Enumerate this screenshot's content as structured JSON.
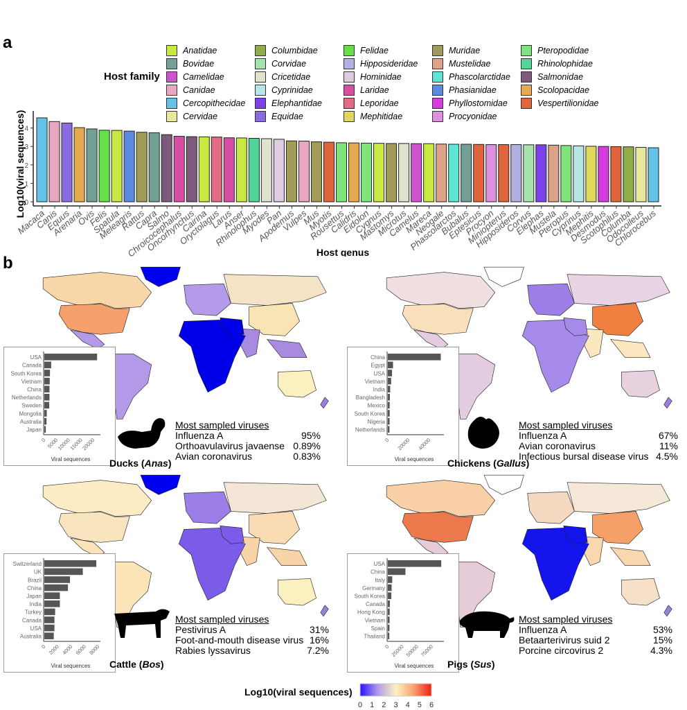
{
  "panel_a_label": "a",
  "panel_b_label": "b",
  "legend": {
    "title": "Host family",
    "items": [
      {
        "name": "Anatidae",
        "color": "#c9e843"
      },
      {
        "name": "Bovidae",
        "color": "#73a094"
      },
      {
        "name": "Camelidae",
        "color": "#cc55cc"
      },
      {
        "name": "Canidae",
        "color": "#e8a7c1"
      },
      {
        "name": "Cercopithecidae",
        "color": "#64c3e8"
      },
      {
        "name": "Cervidae",
        "color": "#e6e89a"
      },
      {
        "name": "Columbidae",
        "color": "#8fae4a"
      },
      {
        "name": "Corvidae",
        "color": "#a7e3ac"
      },
      {
        "name": "Cricetidae",
        "color": "#dfe2cc"
      },
      {
        "name": "Cyprinidae",
        "color": "#b7e6e6"
      },
      {
        "name": "Elephantidae",
        "color": "#7a42e8"
      },
      {
        "name": "Equidae",
        "color": "#8a6ce0"
      },
      {
        "name": "Felidae",
        "color": "#66e048"
      },
      {
        "name": "Hipposideridae",
        "color": "#b0b0e2"
      },
      {
        "name": "Hominidae",
        "color": "#dfcce0"
      },
      {
        "name": "Laridae",
        "color": "#d84ea4"
      },
      {
        "name": "Leporidae",
        "color": "#e26a84"
      },
      {
        "name": "Mephitidae",
        "color": "#e0d85a"
      },
      {
        "name": "Muridae",
        "color": "#a19c57"
      },
      {
        "name": "Mustelidae",
        "color": "#dba488"
      },
      {
        "name": "Phascolarctidae",
        "color": "#5ee6d2"
      },
      {
        "name": "Phasianidae",
        "color": "#5c8ae0"
      },
      {
        "name": "Phyllostomidae",
        "color": "#d63ae0"
      },
      {
        "name": "Procyonidae",
        "color": "#dc90de"
      },
      {
        "name": "Pteropodidae",
        "color": "#7fe47a"
      },
      {
        "name": "Rhinolophidae",
        "color": "#52d49a"
      },
      {
        "name": "Salmonidae",
        "color": "#7b5a7c"
      },
      {
        "name": "Scolopacidae",
        "color": "#e6aa4e"
      },
      {
        "name": "Vespertilionidae",
        "color": "#e0653c"
      }
    ]
  },
  "chart_data": [
    {
      "type": "bar",
      "title": "",
      "xlabel": "Host genus",
      "ylabel": "Log10(viral sequences)",
      "ylim": [
        0,
        4.7
      ],
      "yticks": [
        0,
        1,
        2,
        3,
        4
      ],
      "grid": false,
      "legend_position": "top",
      "categories": [
        "Macaca",
        "Canis",
        "Equus",
        "Arenaria",
        "Ovis",
        "Felis",
        "Spatula",
        "Meleagris",
        "Rattus",
        "Capra",
        "Salmo",
        "Chroicocephalus",
        "Oncorhynchus",
        "Cairina",
        "Oryctolagus",
        "Larus",
        "Anser",
        "Rhinolophus",
        "Myodes",
        "Pan",
        "Apodemus",
        "Vulpes",
        "Mus",
        "Myotis",
        "Rousettus",
        "Calidris",
        "Eidolon",
        "Cygnus",
        "Mastomys",
        "Microtus",
        "Camelus",
        "Mareca",
        "Neogale",
        "Phascolarctos",
        "Bubalus",
        "Eptesicus",
        "Procyon",
        "Miniopterus",
        "Hipposideros",
        "Corvus",
        "Elephas",
        "Mustela",
        "Pteropus",
        "Cyprinus",
        "Mephitis",
        "Desmodus",
        "Scotophilus",
        "Columba",
        "Odocoileus",
        "Chlorocebus"
      ],
      "values": [
        4.55,
        4.35,
        4.27,
        4.02,
        3.95,
        3.88,
        3.87,
        3.83,
        3.77,
        3.74,
        3.64,
        3.55,
        3.53,
        3.52,
        3.51,
        3.47,
        3.46,
        3.44,
        3.42,
        3.39,
        3.3,
        3.29,
        3.25,
        3.23,
        3.2,
        3.19,
        3.18,
        3.17,
        3.16,
        3.16,
        3.15,
        3.15,
        3.13,
        3.12,
        3.12,
        3.11,
        3.1,
        3.1,
        3.1,
        3.09,
        3.09,
        3.07,
        3.05,
        3.03,
        3.01,
        3.0,
        2.99,
        2.98,
        2.95,
        2.93
      ],
      "families": [
        "Cercopithecidae",
        "Canidae",
        "Equidae",
        "Scolopacidae",
        "Bovidae",
        "Felidae",
        "Anatidae",
        "Phasianidae",
        "Muridae",
        "Bovidae",
        "Salmonidae",
        "Laridae",
        "Salmonidae",
        "Anatidae",
        "Leporidae",
        "Laridae",
        "Anatidae",
        "Rhinolophidae",
        "Cricetidae",
        "Hominidae",
        "Muridae",
        "Canidae",
        "Muridae",
        "Vespertilionidae",
        "Pteropodidae",
        "Scolopacidae",
        "Pteropodidae",
        "Anatidae",
        "Muridae",
        "Cricetidae",
        "Camelidae",
        "Anatidae",
        "Mustelidae",
        "Phascolarctidae",
        "Bovidae",
        "Vespertilionidae",
        "Procyonidae",
        "Vespertilionidae",
        "Hipposideridae",
        "Corvidae",
        "Elephantidae",
        "Mustelidae",
        "Pteropodidae",
        "Cyprinidae",
        "Mephitidae",
        "Phyllostomidae",
        "Vespertilionidae",
        "Columbidae",
        "Cervidae",
        "Cercopithecidae"
      ]
    },
    {
      "type": "bar",
      "orientation": "horizontal",
      "title": "Ducks (Anas)",
      "xlabel": "Viral sequences",
      "xlim": [
        0,
        22000
      ],
      "xticks": [
        0,
        5000,
        10000,
        15000,
        20000
      ],
      "categories": [
        "USA",
        "Canada",
        "South Korea",
        "Vietnam",
        "China",
        "Netherlands",
        "Sweden",
        "Mongolia",
        "Australia",
        "Japan"
      ],
      "values": [
        21500,
        2800,
        2300,
        2200,
        2100,
        2100,
        2000,
        1000,
        900,
        600
      ]
    },
    {
      "type": "bar",
      "orientation": "horizontal",
      "title": "Chickens (Gallus)",
      "xlabel": "Viral sequences",
      "xlim": [
        0,
        52000
      ],
      "xticks": [
        0,
        20000,
        40000
      ],
      "categories": [
        "China",
        "Egypt",
        "USA",
        "Vietnam",
        "India",
        "Bangladesh",
        "Mexico",
        "South Korea",
        "Nigeria",
        "Netherlands"
      ],
      "values": [
        51000,
        5000,
        4000,
        3200,
        2300,
        2000,
        1800,
        1800,
        1700,
        1600
      ]
    },
    {
      "type": "bar",
      "orientation": "horizontal",
      "title": "Cattle (Bos)",
      "xlabel": "Viral sequences",
      "xlim": [
        0,
        8000
      ],
      "xticks": [
        0,
        2000,
        4000,
        6000,
        8000
      ],
      "categories": [
        "Switzerland",
        "UK",
        "Brazil",
        "China",
        "Japan",
        "India",
        "Turkey",
        "Canada",
        "USA",
        "Australia"
      ],
      "values": [
        7700,
        5700,
        3800,
        3500,
        2300,
        2300,
        1600,
        1500,
        1500,
        1400
      ]
    },
    {
      "type": "bar",
      "orientation": "horizontal",
      "title": "Pigs (Sus)",
      "xlabel": "Viral sequences",
      "xlim": [
        0,
        92000
      ],
      "xticks": [
        0,
        25000,
        50000,
        75000
      ],
      "categories": [
        "USA",
        "China",
        "Italy",
        "Germany",
        "South Korea",
        "Canada",
        "Hong Kong",
        "Vietnam",
        "Spain",
        "Thailand"
      ],
      "values": [
        91000,
        30000,
        7500,
        6500,
        6000,
        3500,
        3200,
        3000,
        2800,
        2600
      ]
    }
  ],
  "maps": [
    {
      "animal": "Ducks",
      "genus": "Anas",
      "viruses_title": "Most sampled viruses",
      "viruses": [
        {
          "name": "Influenza A",
          "pct": "95%"
        },
        {
          "name": "Orthoavulavirus javaense",
          "pct": "0.89%"
        },
        {
          "name": "Avian coronavirus",
          "pct": "0.83%"
        }
      ],
      "colors": {
        "na": "#f9d7a8",
        "usa": "#f6a06c",
        "greenland": "#0000f0",
        "europe": "#b49ae8",
        "russia": "#f5e3c8",
        "china": "#f9e4b4",
        "africa": "#0000e8",
        "sa": "#b399e8",
        "australia": "#fbf0c0",
        "india": "#a88ae0"
      }
    },
    {
      "animal": "Chickens",
      "genus": "Gallus",
      "viruses_title": "Most sampled viruses",
      "viruses": [
        {
          "name": "Influenza A",
          "pct": "67%"
        },
        {
          "name": "Avian coronavirus",
          "pct": "11%"
        },
        {
          "name": "Infectious bursal disease virus",
          "pct": "4.5%"
        }
      ],
      "colors": {
        "na": "#f0dfe0",
        "usa": "#f9e0bc",
        "greenland": "#ffffff",
        "europe": "#9d7ee6",
        "russia": "#e8d4e4",
        "china": "#f08040",
        "africa": "#a68aea",
        "sa": "#e4cce0",
        "australia": "#e9d2df",
        "india": "#fbe8c0"
      }
    },
    {
      "animal": "Cattle",
      "genus": "Bos",
      "viruses_title": "Most sampled viruses",
      "viruses": [
        {
          "name": "Pestivirus A",
          "pct": "31%"
        },
        {
          "name": "Foot-and-mouth disease virus",
          "pct": "16%"
        },
        {
          "name": "Rabies lyssavirus",
          "pct": "7.2%"
        }
      ],
      "colors": {
        "na": "#fbecc4",
        "usa": "#f9e4c0",
        "greenland": "#0000f0",
        "europe": "#9b7ee6",
        "russia": "#f3e6d6",
        "china": "#f9dcb4",
        "africa": "#7a5ce8",
        "sa": "#fbe4b8",
        "australia": "#fbf0c0",
        "india": "#f9d4a8"
      }
    },
    {
      "animal": "Pigs",
      "genus": "Sus",
      "viruses_title": "Most sampled viruses",
      "viruses": [
        {
          "name": "Influenza A",
          "pct": "53%"
        },
        {
          "name": "Betaarterivirus suid 2",
          "pct": "15%"
        },
        {
          "name": "Porcine circovirus 2",
          "pct": "4.3%"
        }
      ],
      "colors": {
        "na": "#f9d0a8",
        "usa": "#ec7a4c",
        "greenland": "#ffffff",
        "europe": "#f4d8c0",
        "russia": "#f6e8d8",
        "china": "#f5a068",
        "africa": "#1414ec",
        "sa": "#e6ccd8",
        "australia": "#f6e0c8",
        "india": "#f9d8b0"
      }
    }
  ],
  "colorbar": {
    "title": "Log10(viral sequences)",
    "ticks": [
      "0",
      "1",
      "2",
      "3",
      "4",
      "5",
      "6"
    ],
    "range": [
      0,
      6
    ],
    "stops": [
      "#2a10ff",
      "#b39ae8",
      "#fff2c0",
      "#f8a070",
      "#f02010"
    ]
  }
}
